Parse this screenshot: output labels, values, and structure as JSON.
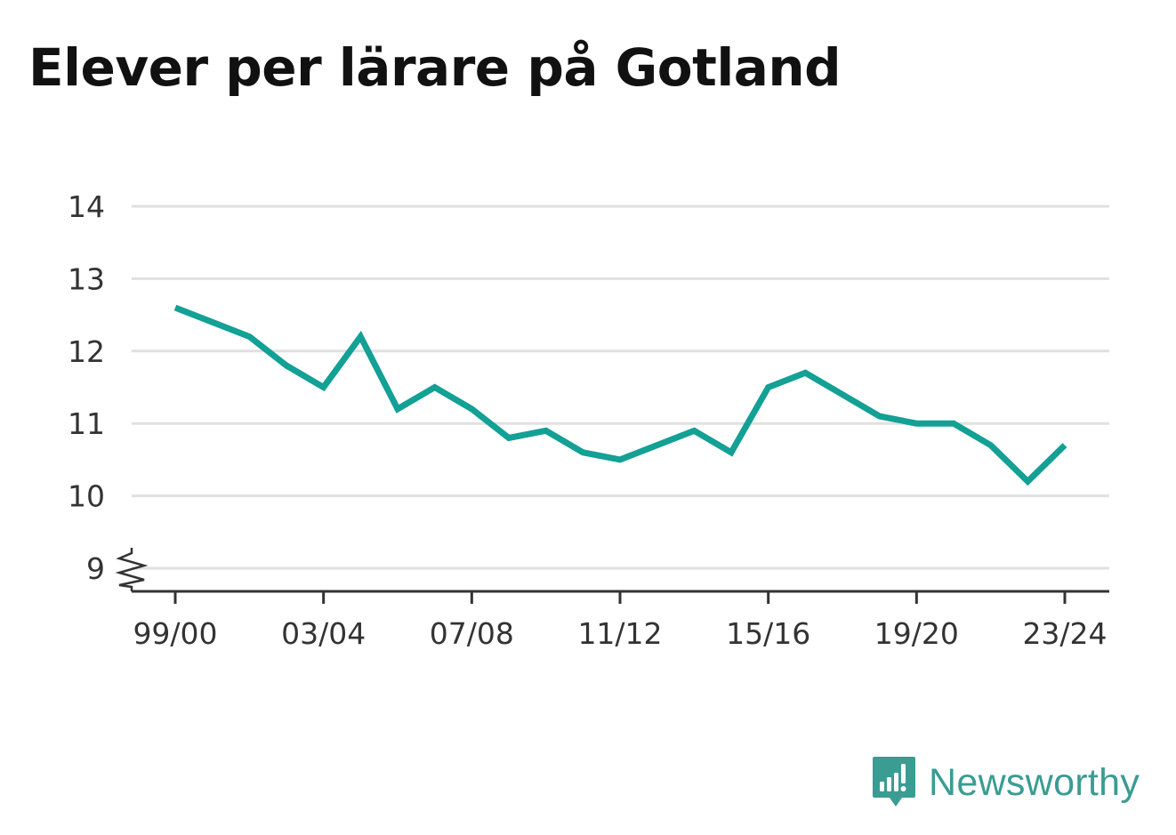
{
  "title": "Elever per lärare på Gotland",
  "brand": {
    "name": "Newsworthy",
    "icon": "newsworthy-logo-icon",
    "color": "#3a9c93"
  },
  "colors": {
    "line": "#13a095",
    "grid": "#e0e0e0",
    "axis": "#333333"
  },
  "chart_data": {
    "type": "line",
    "title": "Elever per lärare på Gotland",
    "xlabel": "",
    "ylabel": "",
    "x": [
      "99/00",
      "00/01",
      "01/02",
      "02/03",
      "03/04",
      "04/05",
      "05/06",
      "06/07",
      "07/08",
      "08/09",
      "09/10",
      "10/11",
      "11/12",
      "12/13",
      "13/14",
      "14/15",
      "15/16",
      "16/17",
      "17/18",
      "18/19",
      "19/20",
      "20/21",
      "21/22",
      "22/23",
      "23/24"
    ],
    "x_tick_labels": [
      "99/00",
      "03/04",
      "07/08",
      "11/12",
      "15/16",
      "19/20",
      "23/24"
    ],
    "series": [
      {
        "values": [
          12.6,
          12.4,
          12.2,
          11.8,
          11.5,
          12.2,
          11.2,
          11.5,
          11.2,
          10.8,
          10.9,
          10.6,
          10.5,
          10.7,
          10.9,
          10.6,
          11.5,
          11.7,
          11.4,
          11.1,
          11.0,
          11.0,
          10.7,
          10.2,
          10.7
        ]
      }
    ],
    "yticks": [
      9,
      10,
      11,
      12,
      13,
      14
    ],
    "ylim": [
      9,
      14
    ],
    "y_axis_break": true,
    "grid": true,
    "legend": "none"
  }
}
